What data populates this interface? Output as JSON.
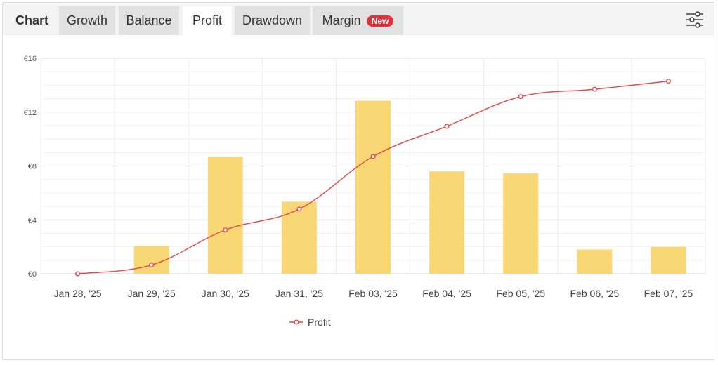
{
  "header": {
    "brand": "Chart",
    "tabs": [
      {
        "label": "Growth",
        "active": false
      },
      {
        "label": "Balance",
        "active": false
      },
      {
        "label": "Profit",
        "active": true
      },
      {
        "label": "Drawdown",
        "active": false
      },
      {
        "label": "Margin",
        "active": false,
        "badge": "New"
      }
    ],
    "settings_icon": "sliders-icon"
  },
  "colors": {
    "bar": "#f9d56e",
    "line": "#e84545",
    "accent_badge": "#e0323a"
  },
  "chart_data": {
    "type": "bar",
    "categories": [
      "Jan 28, '25",
      "Jan 29, '25",
      "Jan 30, '25",
      "Jan 31, '25",
      "Feb 03, '25",
      "Feb 04, '25",
      "Feb 05, '25",
      "Feb 06, '25",
      "Feb 07, '25"
    ],
    "bars": [
      0,
      2.05,
      8.7,
      5.35,
      12.85,
      7.6,
      7.45,
      1.8,
      2.0
    ],
    "series": [
      {
        "name": "Profit",
        "type": "line",
        "values": [
          0,
          0.65,
          3.25,
          4.8,
          8.7,
          10.95,
          13.15,
          13.7,
          14.3
        ]
      }
    ],
    "yticks": [
      "€0",
      "€4",
      "€8",
      "€12",
      "€16"
    ],
    "ylim": [
      0,
      16
    ],
    "grid": true,
    "legend": "bottom-center"
  }
}
